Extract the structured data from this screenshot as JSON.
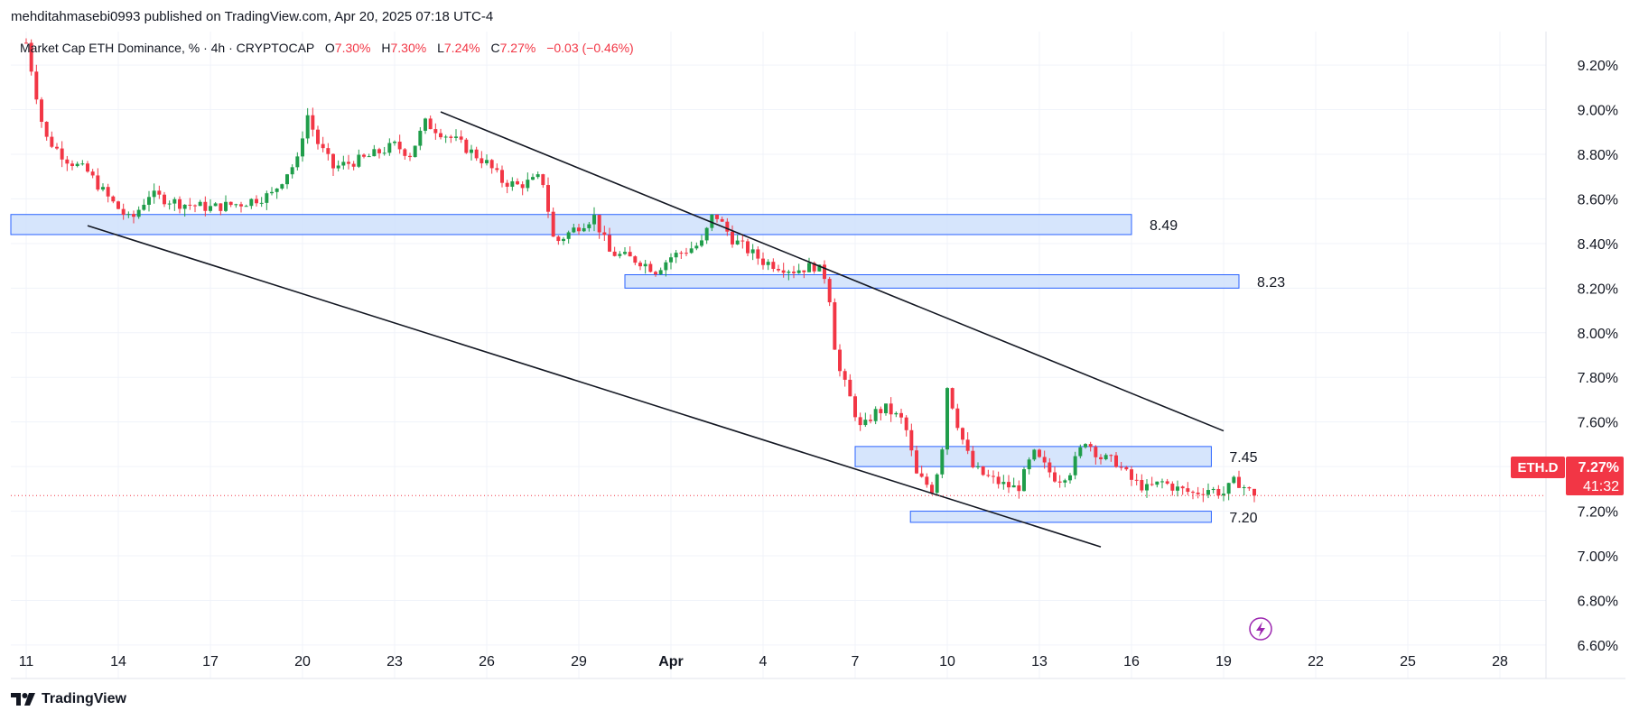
{
  "header": {
    "publish_line": "mehditahmasebi0993 published on TradingView.com, Apr 20, 2025 07:18 UTC-4"
  },
  "legend": {
    "symbol": "Market Cap ETH Dominance, % · 4h · CRYPTOCAP",
    "o_label": "O",
    "o_value": "7.30%",
    "h_label": "H",
    "h_value": "7.30%",
    "l_label": "L",
    "l_value": "7.24%",
    "c_label": "C",
    "c_value": "7.27%",
    "change": "−0.03 (−0.46%)"
  },
  "price_tag": {
    "symbol": "ETH.D",
    "price": "7.27%",
    "countdown": "41:32"
  },
  "footer": {
    "brand": "TradingView"
  },
  "colors": {
    "up": "#26a69a",
    "up_fill": "#1f9d4a",
    "down": "#f23645",
    "zone_fill": "#cfe0fb",
    "zone_stroke": "#2962ff",
    "line": "#131722",
    "grid": "#f0f3fa"
  },
  "chart_data": {
    "type": "candlestick",
    "title": "Market Cap ETH Dominance, % · 4h · CRYPTOCAP",
    "ylabel": "%",
    "ylim": [
      6.45,
      9.35
    ],
    "y_ticks": [
      "9.20%",
      "9.00%",
      "8.80%",
      "8.60%",
      "8.40%",
      "8.20%",
      "8.00%",
      "7.80%",
      "7.60%",
      "7.40%",
      "7.20%",
      "7.00%",
      "6.80%",
      "6.60%"
    ],
    "y_tick_values": [
      9.2,
      9.0,
      8.8,
      8.6,
      8.4,
      8.2,
      8.0,
      7.8,
      7.6,
      7.4,
      7.2,
      7.0,
      6.8,
      6.6
    ],
    "x_ticks": [
      "11",
      "14",
      "17",
      "20",
      "23",
      "26",
      "29",
      "Apr",
      "4",
      "7",
      "10",
      "13",
      "16",
      "19",
      "22",
      "25",
      "28"
    ],
    "x_tick_days": [
      0,
      3,
      6,
      9,
      12,
      15,
      18,
      21,
      24,
      27,
      30,
      33,
      36,
      39,
      42,
      45,
      48
    ],
    "x_range_days": [
      -0.5,
      49.5
    ],
    "last_price": 7.27,
    "ohlc_last": {
      "open": 7.3,
      "high": 7.3,
      "low": 7.24,
      "close": 7.27,
      "change": -0.03,
      "change_pct": -0.46
    },
    "keypoints": [
      [
        0,
        9.3
      ],
      [
        0.6,
        8.88
      ],
      [
        1.3,
        8.78
      ],
      [
        2.0,
        8.72
      ],
      [
        2.7,
        8.6
      ],
      [
        3.4,
        8.5
      ],
      [
        4.0,
        8.62
      ],
      [
        5.0,
        8.58
      ],
      [
        6.0,
        8.56
      ],
      [
        7.0,
        8.58
      ],
      [
        8.0,
        8.62
      ],
      [
        8.5,
        8.72
      ],
      [
        8.9,
        8.78
      ],
      [
        9.1,
        9.0
      ],
      [
        9.5,
        8.85
      ],
      [
        10.0,
        8.74
      ],
      [
        11.0,
        8.78
      ],
      [
        12.0,
        8.84
      ],
      [
        12.5,
        8.8
      ],
      [
        13.0,
        8.94
      ],
      [
        14.0,
        8.86
      ],
      [
        15.0,
        8.76
      ],
      [
        15.5,
        8.68
      ],
      [
        16.0,
        8.66
      ],
      [
        16.5,
        8.68
      ],
      [
        16.8,
        8.7
      ],
      [
        17.2,
        8.4
      ],
      [
        18.0,
        8.48
      ],
      [
        18.5,
        8.52
      ],
      [
        19.0,
        8.36
      ],
      [
        20.0,
        8.32
      ],
      [
        20.5,
        8.28
      ],
      [
        21.0,
        8.34
      ],
      [
        22.0,
        8.4
      ],
      [
        22.4,
        8.54
      ],
      [
        23.0,
        8.42
      ],
      [
        24.0,
        8.32
      ],
      [
        25.0,
        8.28
      ],
      [
        25.7,
        8.3
      ],
      [
        26.1,
        8.24
      ],
      [
        26.4,
        7.86
      ],
      [
        26.8,
        7.72
      ],
      [
        27.2,
        7.56
      ],
      [
        27.6,
        7.64
      ],
      [
        28.0,
        7.66
      ],
      [
        28.6,
        7.6
      ],
      [
        29.0,
        7.36
      ],
      [
        29.5,
        7.3
      ],
      [
        29.8,
        7.44
      ],
      [
        30.0,
        7.76
      ],
      [
        30.4,
        7.56
      ],
      [
        30.8,
        7.4
      ],
      [
        31.2,
        7.36
      ],
      [
        31.8,
        7.32
      ],
      [
        32.3,
        7.3
      ],
      [
        32.8,
        7.46
      ],
      [
        33.3,
        7.38
      ],
      [
        33.6,
        7.34
      ],
      [
        34.0,
        7.38
      ],
      [
        34.5,
        7.52
      ],
      [
        35.0,
        7.44
      ],
      [
        35.5,
        7.42
      ],
      [
        36.0,
        7.34
      ],
      [
        36.5,
        7.3
      ],
      [
        37.0,
        7.33
      ],
      [
        37.5,
        7.3
      ],
      [
        38.0,
        7.28
      ],
      [
        38.5,
        7.3
      ],
      [
        39.0,
        7.28
      ],
      [
        39.4,
        7.34
      ],
      [
        40.0,
        7.27
      ]
    ],
    "trendlines": [
      {
        "name": "upper",
        "from": [
          13.5,
          8.99
        ],
        "to": [
          39.0,
          7.56
        ]
      },
      {
        "name": "lower",
        "from": [
          2.0,
          8.48
        ],
        "to": [
          35.0,
          7.04
        ]
      }
    ],
    "zones": [
      {
        "label": "8.49",
        "start_day": -0.5,
        "end_day": 36.0,
        "top": 8.53,
        "bottom": 8.44
      },
      {
        "label": "8.23",
        "start_day": 19.5,
        "end_day": 39.5,
        "top": 8.26,
        "bottom": 8.2
      },
      {
        "label": "7.45",
        "start_day": 27.0,
        "end_day": 38.6,
        "top": 7.49,
        "bottom": 7.4
      },
      {
        "label": "7.20",
        "start_day": 28.8,
        "end_day": 38.6,
        "top": 7.2,
        "bottom": 7.15
      }
    ]
  }
}
